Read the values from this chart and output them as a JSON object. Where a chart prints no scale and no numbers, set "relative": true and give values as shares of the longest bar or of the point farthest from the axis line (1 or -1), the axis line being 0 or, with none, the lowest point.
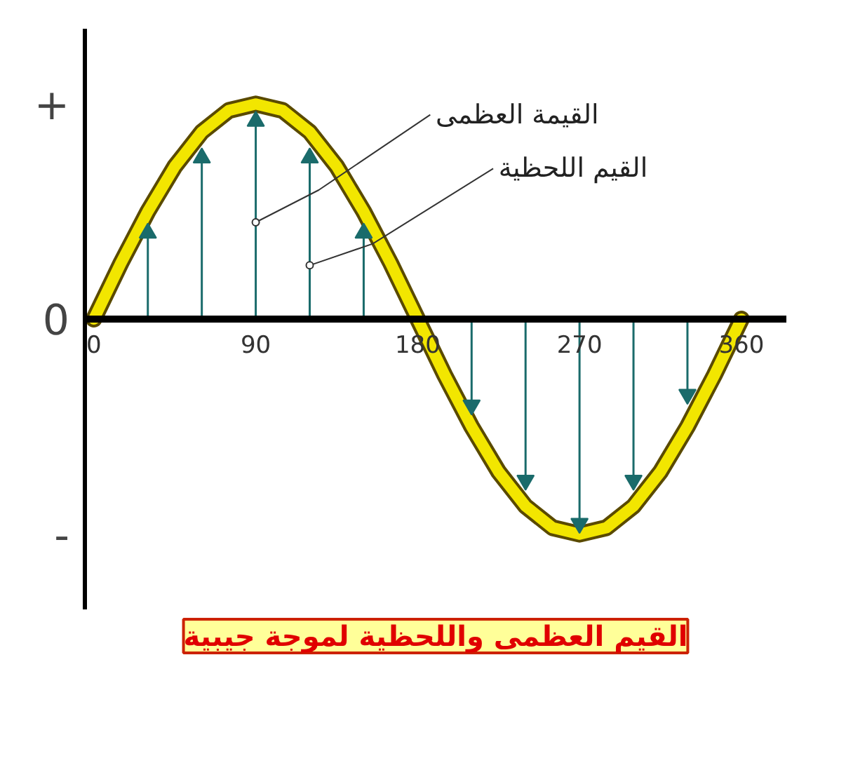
{
  "chart_data": {
    "type": "line",
    "title": "القيم العظمى واللحظية لموجة جيبية",
    "relative": true,
    "xlim": [
      -5,
      385
    ],
    "xticks": [
      0,
      90,
      180,
      270,
      360
    ],
    "grid": false,
    "series": [
      {
        "color": "#f2e600",
        "x": [
          0,
          15,
          30,
          45,
          60,
          75,
          90,
          105,
          120,
          135,
          150,
          165,
          180,
          195,
          210,
          225,
          240,
          255,
          270,
          285,
          300,
          315,
          330,
          345,
          360
        ],
        "values": [
          0,
          0.26,
          0.5,
          0.71,
          0.87,
          0.97,
          1,
          0.97,
          0.87,
          0.71,
          0.5,
          0.26,
          0,
          -0.26,
          -0.5,
          -0.71,
          -0.87,
          -0.97,
          -1,
          -0.97,
          -0.87,
          -0.71,
          -0.5,
          -0.26,
          0
        ]
      },
      {
        "type": "lollipop",
        "color": "#1a6b6b",
        "marker": "triangle",
        "x": [
          30,
          60,
          90,
          120,
          150,
          210,
          240,
          270,
          300,
          330
        ],
        "values": [
          0.4,
          0.75,
          0.92,
          0.75,
          0.4,
          -0.4,
          -0.75,
          -0.95,
          -0.75,
          -0.35
        ]
      }
    ],
    "annotations": [
      "+",
      "0",
      "-",
      {
        "text": "القيمة العظمى",
        "x": 90,
        "y": 0.45
      },
      {
        "text": "القيم اللحظية",
        "x": 120,
        "y": 0.25
      }
    ]
  }
}
